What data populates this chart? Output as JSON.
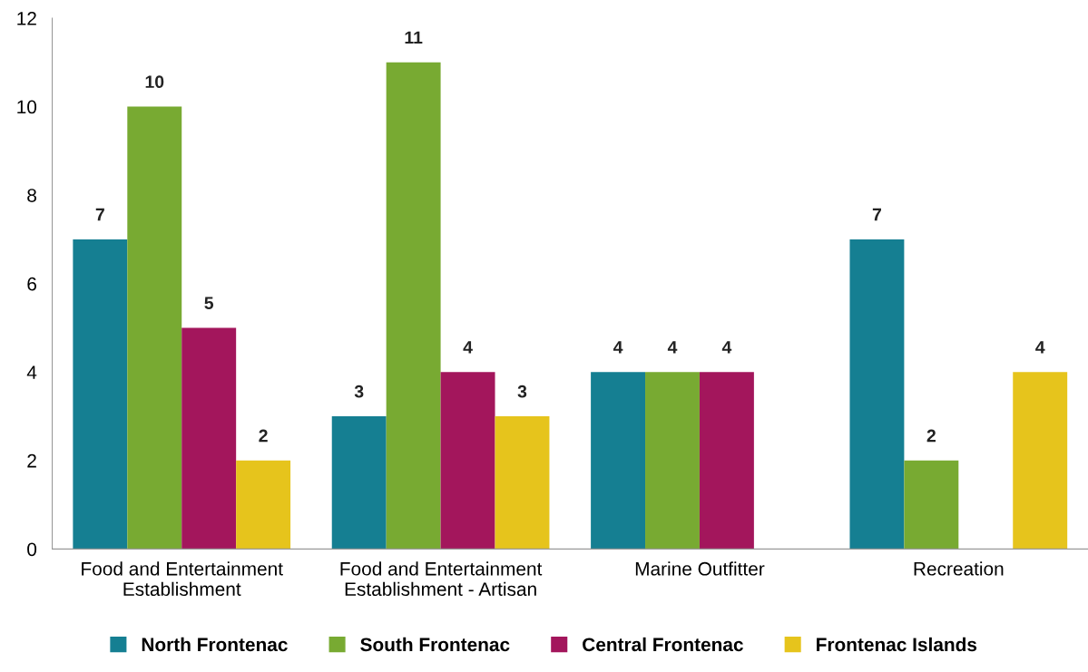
{
  "chart_data": {
    "type": "bar",
    "categories": [
      "Food and Entertainment Establishment",
      "Food and Entertainment Establishment - Artisan",
      "Marine Outfitter",
      "Recreation"
    ],
    "series": [
      {
        "name": "North Frontenac",
        "color": "#157f92",
        "values": [
          7,
          3,
          4,
          7
        ]
      },
      {
        "name": "South Frontenac",
        "color": "#78aa32",
        "values": [
          10,
          11,
          4,
          2
        ]
      },
      {
        "name": "Central Frontenac",
        "color": "#a3165c",
        "values": [
          5,
          4,
          4,
          null
        ]
      },
      {
        "name": "Frontenac Islands",
        "color": "#e6c41c",
        "values": [
          2,
          3,
          null,
          4
        ]
      }
    ],
    "ylim": [
      0,
      12
    ],
    "yticks": [
      0,
      2,
      4,
      6,
      8,
      10,
      12
    ],
    "grid": false,
    "legend": "bottom",
    "data_labels": true
  }
}
